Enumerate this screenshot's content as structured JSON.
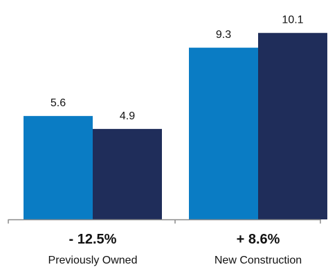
{
  "chart_data": {
    "type": "bar",
    "categories": [
      "Previously Owned",
      "New Construction"
    ],
    "change_labels": [
      "- 12.5%",
      "+ 8.6%"
    ],
    "series": [
      {
        "values": [
          5.6,
          9.3
        ],
        "color": "#0a7cc4"
      },
      {
        "values": [
          4.9,
          10.1
        ],
        "color": "#1f2d5a"
      }
    ],
    "data_labels": [
      [
        "5.6",
        "9.3"
      ],
      [
        "4.9",
        "10.1"
      ]
    ],
    "ylim": [
      0,
      11.36
    ],
    "grid": false,
    "axis_color": "#8a8a8a"
  }
}
